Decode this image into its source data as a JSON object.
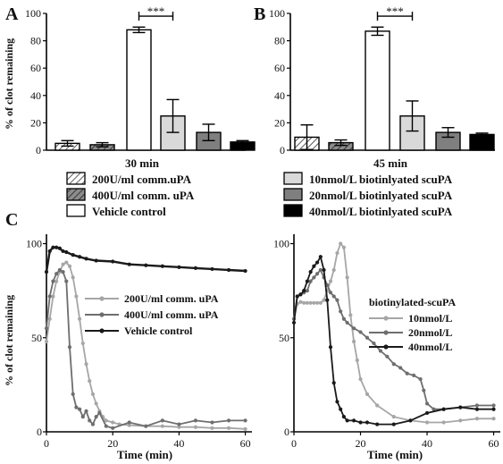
{
  "panel_letters": [
    "A",
    "B",
    "C"
  ],
  "chart_data": [
    {
      "id": "A",
      "type": "bar",
      "title": "",
      "xlabel": "30 min",
      "ylabel": "% of clot remaining",
      "ylim": [
        0,
        100
      ],
      "yticks": [
        0,
        20,
        40,
        60,
        80,
        100
      ],
      "sig_label": "***",
      "categories": [
        "200U/ml comm.uPA",
        "400U/ml comm. uPA",
        "Vehicle control",
        "10nmol/L biotinlyated scuPA",
        "20nmol/L biotinlyated scuPA",
        "40nmol/L biotinlyated scuPA"
      ],
      "values": [
        5,
        4,
        88,
        25,
        13,
        6
      ],
      "errors": [
        2,
        1.5,
        2,
        12,
        6,
        1
      ]
    },
    {
      "id": "B",
      "type": "bar",
      "title": "",
      "xlabel": "45 min",
      "ylabel": "",
      "ylim": [
        0,
        100
      ],
      "yticks": [
        0,
        20,
        40,
        60,
        80,
        100
      ],
      "sig_label": "***",
      "categories": [
        "200U/ml comm.uPA",
        "400U/ml comm. uPA",
        "Vehicle control",
        "10nmol/L biotinlyated scuPA",
        "20nmol/L biotinlyated scuPA",
        "40nmol/L biotinlyated scuPA"
      ],
      "values": [
        9.5,
        5.5,
        87,
        25,
        13,
        11.5
      ],
      "errors": [
        9,
        2,
        3,
        11,
        3.5,
        1
      ]
    },
    {
      "id": "C1",
      "type": "line",
      "xlabel": "Time (min)",
      "ylabel": "% of clot remaining",
      "xlim": [
        0,
        62
      ],
      "ylim": [
        0,
        105
      ],
      "xticks": [
        0,
        20,
        40,
        60
      ],
      "yticks": [
        0,
        50,
        100
      ],
      "series": [
        {
          "name": "200U/ml comm. uPA",
          "x": [
            0,
            1,
            2,
            3,
            4,
            5,
            6,
            7,
            8,
            9,
            10,
            11,
            12,
            13,
            14,
            15,
            16,
            17,
            18,
            20,
            22,
            25,
            30,
            35,
            40,
            45,
            50,
            55,
            60
          ],
          "y": [
            48,
            60,
            72,
            80,
            85,
            89,
            90,
            88,
            82,
            72,
            60,
            47,
            36,
            27,
            20,
            15,
            11,
            8,
            6,
            5,
            4,
            3.5,
            3,
            3,
            2.5,
            2.5,
            2,
            2,
            1.5
          ]
        },
        {
          "name": "400U/ml comm. uPA",
          "x": [
            0,
            1,
            2,
            3,
            4,
            5,
            6,
            7,
            8,
            9,
            10,
            11,
            12,
            13,
            14,
            15,
            16,
            18,
            20,
            25,
            30,
            35,
            40,
            45,
            50,
            55,
            60
          ],
          "y": [
            55,
            72,
            80,
            84,
            86,
            85,
            80,
            45,
            20,
            13,
            12,
            8,
            11,
            6,
            4,
            8,
            10,
            3,
            2,
            5,
            3,
            6,
            4,
            6,
            5,
            6,
            6
          ]
        },
        {
          "name": "Vehicle control",
          "x": [
            0,
            1,
            2,
            3,
            4,
            5,
            6,
            8,
            10,
            12,
            15,
            20,
            25,
            30,
            35,
            40,
            45,
            50,
            55,
            60
          ],
          "y": [
            85,
            96,
            98,
            98,
            97.5,
            96,
            95.5,
            94,
            93,
            92,
            91,
            90.5,
            89,
            88.5,
            88,
            87.5,
            87,
            86.5,
            86,
            85.5
          ]
        }
      ]
    },
    {
      "id": "C2",
      "type": "line",
      "xlabel": "Time (min)",
      "ylabel": "",
      "xlim": [
        0,
        62
      ],
      "ylim": [
        0,
        105
      ],
      "xticks": [
        0,
        20,
        40,
        60
      ],
      "yticks": [
        0,
        50,
        100
      ],
      "legend_title": "biotinylated-scuPA",
      "series": [
        {
          "name": "10nmol/L",
          "x": [
            0,
            1,
            2,
            3,
            4,
            5,
            6,
            7,
            8,
            9,
            10,
            11,
            12,
            13,
            14,
            15,
            16,
            17,
            18,
            19,
            20,
            22,
            25,
            30,
            35,
            40,
            45,
            50,
            55,
            60
          ],
          "y": [
            60,
            68,
            69,
            68.5,
            68.5,
            68.5,
            68.5,
            68.5,
            68.5,
            70,
            75,
            80,
            86,
            95,
            100,
            98,
            82,
            62,
            48,
            38,
            28,
            20,
            14,
            8,
            6,
            5,
            5,
            6,
            7,
            7
          ]
        },
        {
          "name": "20nmol/L",
          "x": [
            0,
            1,
            2,
            3,
            4,
            5,
            6,
            7,
            8,
            9,
            10,
            11,
            12,
            13,
            14,
            15,
            16,
            18,
            20,
            22,
            24,
            26,
            28,
            30,
            32,
            34,
            36,
            38,
            39,
            40,
            42,
            45,
            50,
            55,
            60
          ],
          "y": [
            60,
            72,
            73,
            74,
            75,
            80,
            82,
            84,
            86,
            82,
            78,
            74,
            72,
            70,
            64,
            60,
            58,
            55,
            53,
            50,
            47,
            43,
            40,
            36,
            34,
            31,
            30,
            28,
            22,
            15,
            12,
            12,
            13,
            14,
            14
          ]
        },
        {
          "name": "40nmol/L",
          "x": [
            0,
            1,
            2,
            3,
            4,
            5,
            6,
            7,
            8,
            9,
            10,
            11,
            12,
            13,
            14,
            15,
            16,
            18,
            20,
            22,
            25,
            30,
            35,
            40,
            45,
            50,
            55,
            60
          ],
          "y": [
            58,
            72,
            73,
            75,
            80,
            85,
            88,
            90,
            93,
            86,
            70,
            45,
            26,
            16,
            12,
            8,
            6,
            6,
            5,
            5,
            4,
            4,
            6,
            10,
            12,
            13,
            12,
            12
          ]
        }
      ]
    }
  ],
  "legend": {
    "items": [
      {
        "label": "200U/ml comm.uPA",
        "style": "hatch-light"
      },
      {
        "label": "400U/ml comm. uPA",
        "style": "hatch-dark"
      },
      {
        "label": "Vehicle control",
        "style": "white"
      },
      {
        "label": "10nmol/L biotinlyated scuPA",
        "style": "light"
      },
      {
        "label": "20nmol/L biotinlyated scuPA",
        "style": "mid"
      },
      {
        "label": "40nmol/L biotinlyated scuPA",
        "style": "black"
      }
    ]
  },
  "colors": {
    "light_gray": "#d9d9d9",
    "mid_gray": "#7f7f7f",
    "dark": "#000000",
    "line_light": "#a6a6a6",
    "line_mid": "#6e6e6e",
    "line_dark": "#1a1a1a"
  }
}
